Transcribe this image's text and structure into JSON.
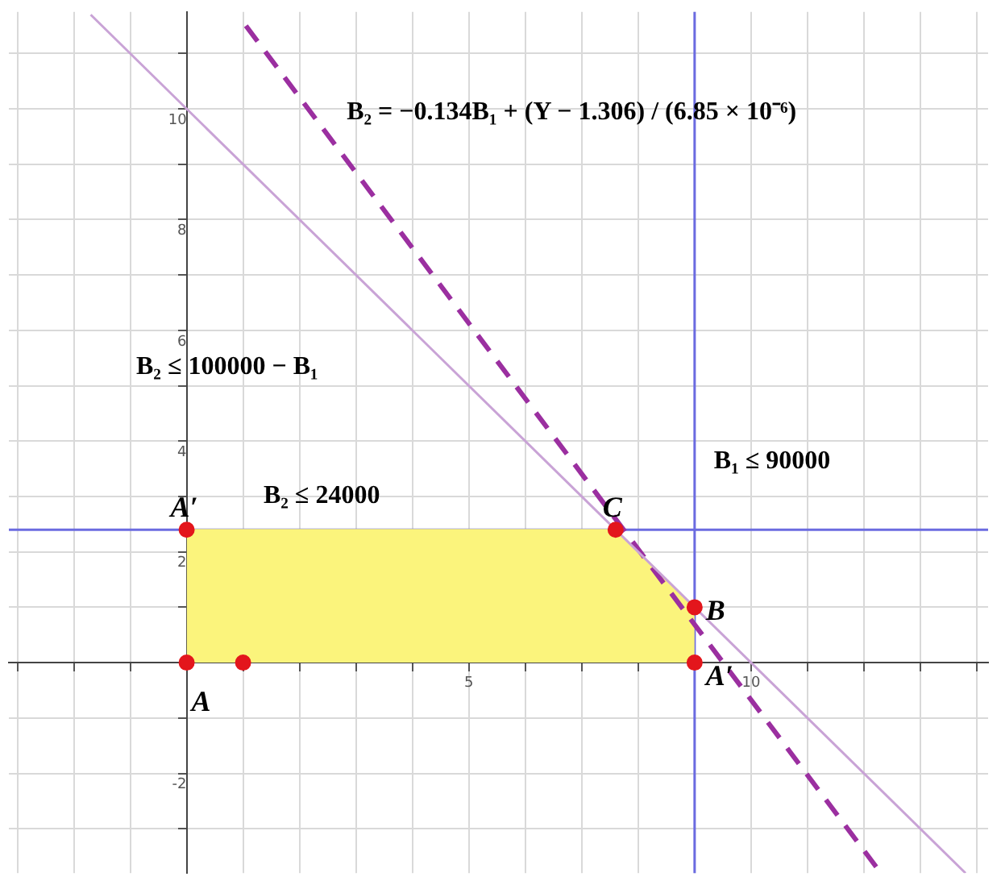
{
  "chart_data": {
    "type": "line",
    "xlim": [
      -3.15,
      14.2
    ],
    "ylim": [
      -3.8,
      11.75
    ],
    "xticks": [
      {
        "value": -3,
        "label": null
      },
      {
        "value": -2,
        "label": null
      },
      {
        "value": -1,
        "label": null
      },
      {
        "value": 0,
        "label": null
      },
      {
        "value": 1,
        "label": null
      },
      {
        "value": 2,
        "label": null
      },
      {
        "value": 3,
        "label": null
      },
      {
        "value": 4,
        "label": null
      },
      5,
      {
        "value": 6,
        "label": null
      },
      {
        "value": 7,
        "label": null
      },
      {
        "value": 8,
        "label": null
      },
      {
        "value": 9,
        "label": null
      },
      10,
      {
        "value": 11,
        "label": null
      },
      {
        "value": 12,
        "label": null
      },
      {
        "value": 13,
        "label": null
      },
      {
        "value": 14,
        "label": null
      }
    ],
    "yticks": [
      {
        "value": -3,
        "label": null
      },
      -2,
      {
        "value": -1,
        "label": null
      },
      {
        "value": 0,
        "label": null
      },
      {
        "value": 1,
        "label": null
      },
      2,
      {
        "value": 3,
        "label": null
      },
      4,
      {
        "value": 5,
        "label": null
      },
      6,
      {
        "value": 7,
        "label": null
      },
      8,
      {
        "value": 9,
        "label": null
      },
      10,
      {
        "value": 11,
        "label": null
      }
    ],
    "grid": true,
    "marker": "none",
    "series": [
      {
        "type": "area",
        "color": "#fbf47c",
        "x": [
          0,
          7.6,
          9
        ],
        "values": [
          2.4,
          2.4,
          1
        ]
      },
      {
        "type": "line",
        "color": "#c9a3d6",
        "x": [
          -1.7,
          13.8
        ],
        "values": [
          11.7,
          -3.8
        ]
      },
      {
        "type": "line",
        "color": "#9b2fa0",
        "line_style": "dashed",
        "x": [
          1.05,
          12.3
        ],
        "values": [
          11.5,
          -3.8
        ]
      },
      {
        "type": "scatter",
        "color": "#e3161c",
        "marker": "circle",
        "x": [
          0,
          1,
          0,
          7.6,
          9,
          9
        ],
        "values": [
          0,
          0,
          2.4,
          2.4,
          1,
          0
        ]
      }
    ],
    "ref_lines": [
      {
        "axis": "y",
        "value": 2.4,
        "color": "#6b6be0"
      },
      {
        "axis": "x",
        "value": 9,
        "color": "#6b6be0"
      }
    ],
    "annotations": [
      "B₂ = −0.134B₁ + (Y − 1.306) / (6.85 × 10⁻⁶)",
      "B₂ ≤ 100000 − B₁",
      "B₁ ≤ 90000",
      "B₂ ≤ 24000",
      {
        "text": "A′",
        "x": 0,
        "y": 2.4
      },
      {
        "text": "C",
        "x": 7.6,
        "y": 2.4
      },
      {
        "text": "B",
        "x": 9,
        "y": 1
      },
      {
        "text": "A′",
        "x": 9,
        "y": 0
      },
      {
        "text": "A",
        "x": 0,
        "y": 0
      }
    ]
  }
}
